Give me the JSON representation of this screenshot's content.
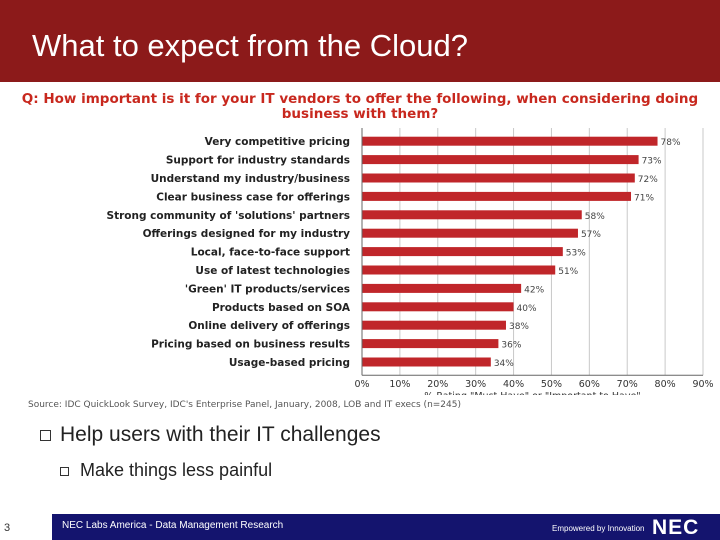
{
  "slide": {
    "title": "What to expect from the Cloud?",
    "page_number": "3",
    "footer_text": "NEC Labs America - Data Management Research",
    "tagline": "Empowered by Innovation",
    "logo_text": "NEC"
  },
  "bullets": [
    {
      "text": "Help users with  their IT challenges",
      "level": 1
    },
    {
      "text": "Make things less painful",
      "level": 2
    }
  ],
  "colors": {
    "header": "#8c1a1a",
    "footer": "#14146e",
    "bar": "#c0262a",
    "title_text": "#c8281e"
  },
  "chart_data": {
    "type": "bar",
    "orientation": "horizontal",
    "title": "Q: How important is it for your IT vendors to offer the following, when considering doing business with them?",
    "categories": [
      "Very competitive pricing",
      "Support for industry standards",
      "Understand my industry/business",
      "Clear business case for offerings",
      "Strong community of 'solutions' partners",
      "Offerings designed for my industry",
      "Local, face-to-face support",
      "Use of latest technologies",
      "'Green' IT products/services",
      "Products based on SOA",
      "Online delivery of offerings",
      "Pricing based on business results",
      "Usage-based pricing"
    ],
    "values": [
      78,
      73,
      72,
      71,
      58,
      57,
      53,
      51,
      42,
      40,
      38,
      36,
      34
    ],
    "value_labels": [
      "78%",
      "73%",
      "72%",
      "71%",
      "58%",
      "57%",
      "53%",
      "51%",
      "42%",
      "40%",
      "38%",
      "36%",
      "34%"
    ],
    "xlim": [
      0,
      90
    ],
    "xticks": [
      "0%",
      "10%",
      "20%",
      "30%",
      "40%",
      "50%",
      "60%",
      "70%",
      "80%",
      "90%"
    ],
    "xlabel": "% Rating \"Must Have\" or \"Important to Have\"",
    "source": "Source: IDC QuickLook Survey, IDC's Enterprise Panel, January, 2008, LOB and IT execs (n=245)",
    "grid": true
  }
}
